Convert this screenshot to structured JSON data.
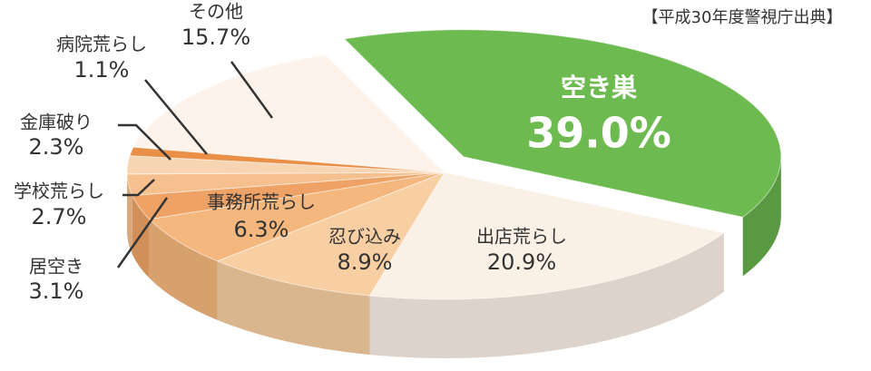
{
  "chart_data": {
    "type": "pie",
    "source": "【平成30年度警視庁出典】",
    "categories": [
      "空き巣",
      "出店荒らし",
      "忍び込み",
      "事務所荒らし",
      "居空き",
      "学校荒らし",
      "金庫破り",
      "病院荒らし",
      "その他"
    ],
    "values": [
      39.0,
      20.9,
      8.9,
      6.3,
      3.1,
      2.7,
      2.3,
      1.1,
      15.7
    ],
    "value_labels": [
      "39.0%",
      "20.9%",
      "8.9%",
      "6.3%",
      "3.1%",
      "2.7%",
      "2.3%",
      "1.1%",
      "15.7%"
    ],
    "colors": [
      "#6dba50",
      "#fbf0e6",
      "#f8cfa3",
      "#f4b77d",
      "#eea265",
      "#f5c08e",
      "#f8d5b2",
      "#e98f48",
      "#fdf3ea"
    ]
  }
}
